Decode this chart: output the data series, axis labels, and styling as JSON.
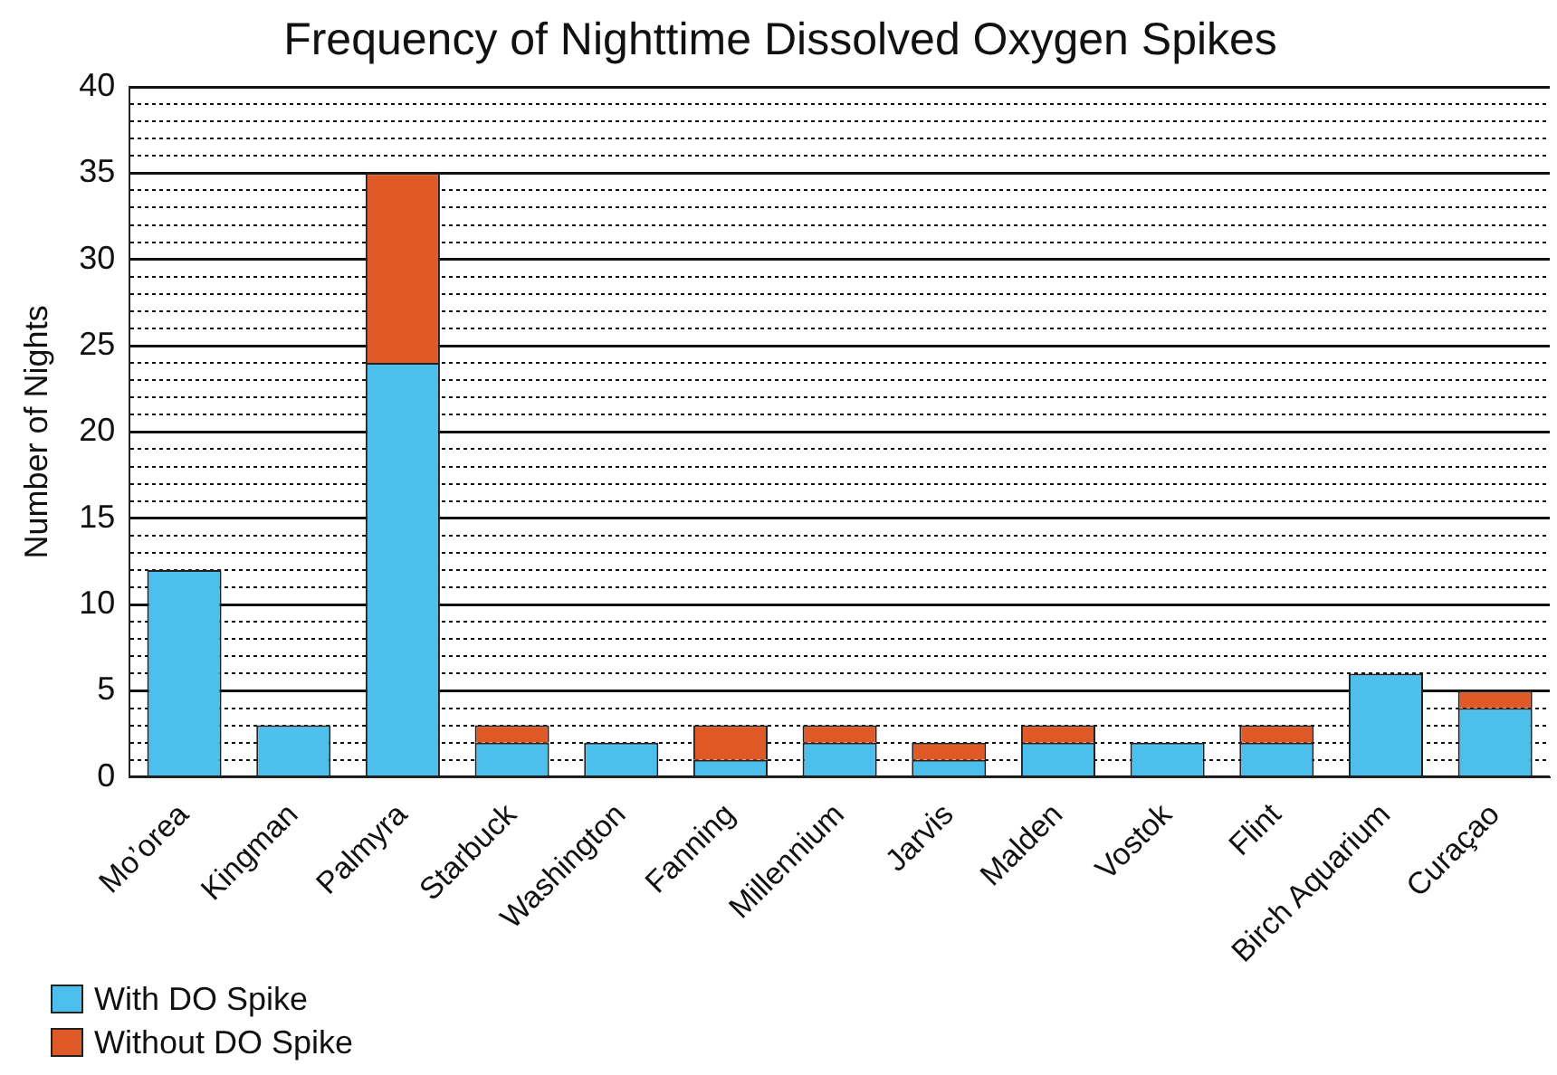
{
  "chart_data": {
    "type": "bar",
    "title": "Frequency of Nighttime Dissolved Oxygen Spikes",
    "ylabel": "Number of Nights",
    "stacked": true,
    "legend": "bottom left",
    "grid": "y",
    "categories": [
      "Mo’orea",
      "Kingman",
      "Palmyra",
      "Starbuck",
      "Washington",
      "Fanning",
      "Millennium",
      "Jarvis",
      "Malden",
      "Vostok",
      "Flint",
      "Birch Aquarium",
      "Curaçao"
    ],
    "series": [
      {
        "name": "With DO Spike",
        "color": "#4dbfec",
        "values": [
          12,
          3,
          24,
          2,
          2,
          1,
          2,
          1,
          2,
          2,
          2,
          6,
          4
        ]
      },
      {
        "name": "Without DO Spike",
        "color": "#e05a28",
        "values": [
          0,
          0,
          11,
          1,
          0,
          2,
          1,
          1,
          1,
          0,
          1,
          0,
          1
        ]
      }
    ],
    "ylim": [
      0,
      40
    ],
    "yticks": [
      0,
      {
        "value": 1,
        "label": null
      },
      {
        "value": 2,
        "label": null
      },
      {
        "value": 3,
        "label": null
      },
      {
        "value": 4,
        "label": null
      },
      5,
      {
        "value": 6,
        "label": null
      },
      {
        "value": 7,
        "label": null
      },
      {
        "value": 8,
        "label": null
      },
      {
        "value": 9,
        "label": null
      },
      10,
      {
        "value": 11,
        "label": null
      },
      {
        "value": 12,
        "label": null
      },
      {
        "value": 13,
        "label": null
      },
      {
        "value": 14,
        "label": null
      },
      15,
      {
        "value": 16,
        "label": null
      },
      {
        "value": 17,
        "label": null
      },
      {
        "value": 18,
        "label": null
      },
      {
        "value": 19,
        "label": null
      },
      20,
      {
        "value": 21,
        "label": null
      },
      {
        "value": 22,
        "label": null
      },
      {
        "value": 23,
        "label": null
      },
      {
        "value": 24,
        "label": null
      },
      25,
      {
        "value": 26,
        "label": null
      },
      {
        "value": 27,
        "label": null
      },
      {
        "value": 28,
        "label": null
      },
      {
        "value": 29,
        "label": null
      },
      30,
      {
        "value": 31,
        "label": null
      },
      {
        "value": 32,
        "label": null
      },
      {
        "value": 33,
        "label": null
      },
      {
        "value": 34,
        "label": null
      },
      35,
      {
        "value": 36,
        "label": null
      },
      {
        "value": 37,
        "label": null
      },
      {
        "value": 38,
        "label": null
      },
      {
        "value": 39,
        "label": null
      },
      40
    ]
  }
}
